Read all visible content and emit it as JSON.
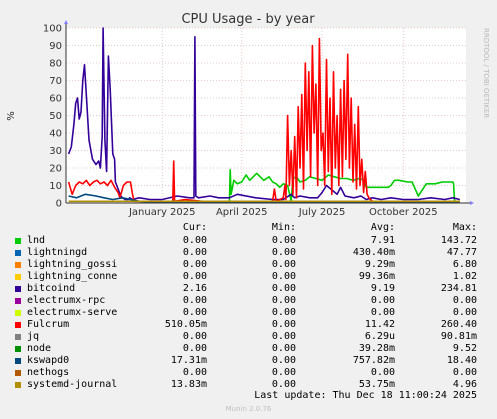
{
  "chart_data": {
    "type": "line",
    "title": "CPU Usage - by year",
    "ylabel": "%",
    "ylim": [
      0,
      100
    ],
    "yticks": [
      0,
      10,
      20,
      30,
      40,
      50,
      60,
      70,
      80,
      90,
      100
    ],
    "xlim": [
      "2024-09-28",
      "2025-12-25"
    ],
    "xticks": [
      {
        "label": "January 2025",
        "date": "2025-01-15"
      },
      {
        "label": "April 2025",
        "date": "2025-04-15"
      },
      {
        "label": "July 2025",
        "date": "2025-07-15"
      },
      {
        "label": "October 2025",
        "date": "2025-10-15"
      }
    ],
    "grid": true,
    "series": [
      {
        "name": "lnd",
        "color": "#00cc00",
        "x": [
          "2025-04-01",
          "2025-04-02",
          "2025-04-03",
          "2025-04-06",
          "2025-04-10",
          "2025-04-15",
          "2025-04-20",
          "2025-04-24",
          "2025-04-28",
          "2025-05-02",
          "2025-05-10",
          "2025-05-16",
          "2025-05-20",
          "2025-05-24",
          "2025-05-28",
          "2025-06-01",
          "2025-06-06",
          "2025-06-10",
          "2025-06-12",
          "2025-06-16",
          "2025-06-20",
          "2025-06-26",
          "2025-07-01",
          "2025-07-08",
          "2025-07-15",
          "2025-07-22",
          "2025-07-29",
          "2025-08-05",
          "2025-08-12",
          "2025-08-19",
          "2025-08-26",
          "2025-09-01",
          "2025-09-03",
          "2025-09-10",
          "2025-09-20",
          "2025-09-28",
          "2025-10-01",
          "2025-10-05",
          "2025-10-10",
          "2025-10-20",
          "2025-10-25",
          "2025-11-01",
          "2025-11-10",
          "2025-11-20",
          "2025-11-28",
          "2025-12-05",
          "2025-12-10",
          "2025-12-11",
          "2025-12-12",
          "2025-12-18"
        ],
        "y": [
          0,
          19,
          5,
          13,
          11,
          12,
          16,
          13,
          15,
          17,
          13,
          15,
          12,
          11,
          9,
          11,
          10,
          1,
          14,
          15,
          12,
          13,
          15,
          14,
          13,
          16,
          15,
          14,
          14,
          13,
          14,
          13,
          9,
          9,
          9,
          9,
          10,
          13,
          13,
          12,
          12,
          4,
          11,
          11,
          12,
          12,
          12,
          11,
          1,
          1
        ]
      },
      {
        "name": "lightningd",
        "color": "#0066b3",
        "x": [],
        "y": []
      },
      {
        "name": "lightning_gossi",
        "color": "#ff8000",
        "x": [],
        "y": []
      },
      {
        "name": "lightning_conne",
        "color": "#ffcc00",
        "x": [],
        "y": []
      },
      {
        "name": "bitcoind",
        "color": "#330099",
        "x": [
          "2024-10-01",
          "2024-10-04",
          "2024-10-07",
          "2024-10-09",
          "2024-10-11",
          "2024-10-13",
          "2024-10-15",
          "2024-10-17",
          "2024-10-19",
          "2024-10-21",
          "2024-10-24",
          "2024-10-28",
          "2024-11-01",
          "2024-11-04",
          "2024-11-06",
          "2024-11-08",
          "2024-11-09",
          "2024-11-11",
          "2024-11-13",
          "2024-11-15",
          "2024-11-17",
          "2024-11-20",
          "2024-11-22",
          "2024-11-23",
          "2024-11-26",
          "2024-11-29",
          "2024-12-01",
          "2024-12-04",
          "2024-12-06",
          "2024-12-08",
          "2024-12-09",
          "2024-12-12",
          "2024-12-20",
          "2025-01-01",
          "2025-01-15",
          "2025-02-01",
          "2025-02-15",
          "2025-02-20",
          "2025-02-21",
          "2025-02-22",
          "2025-02-25",
          "2025-03-10",
          "2025-03-20",
          "2025-04-01",
          "2025-04-10",
          "2025-05-01",
          "2025-05-20",
          "2025-06-01",
          "2025-06-10",
          "2025-06-14",
          "2025-06-20",
          "2025-07-01",
          "2025-07-10",
          "2025-07-15",
          "2025-07-20",
          "2025-08-01",
          "2025-08-05",
          "2025-08-10",
          "2025-08-20",
          "2025-08-28",
          "2025-09-03",
          "2025-09-10",
          "2025-09-20",
          "2025-10-01",
          "2025-10-15",
          "2025-11-01",
          "2025-11-15",
          "2025-12-01",
          "2025-12-10",
          "2025-12-18"
        ],
        "y": [
          28,
          32,
          45,
          57,
          60,
          48,
          52,
          70,
          79,
          62,
          36,
          25,
          22,
          24,
          20,
          38,
          100,
          36,
          18,
          84,
          65,
          28,
          25,
          12,
          8,
          4,
          3,
          2,
          2,
          2,
          3,
          2,
          3,
          2,
          2,
          4,
          3,
          3,
          95,
          4,
          3,
          4,
          3,
          3,
          5,
          3,
          2,
          2,
          5,
          3,
          4,
          3,
          3,
          6,
          10,
          5,
          9,
          4,
          3,
          4,
          2,
          3,
          2,
          3,
          2,
          2,
          3,
          2,
          3,
          2
        ]
      },
      {
        "name": "electrumx-rpc",
        "color": "#990099",
        "x": [],
        "y": []
      },
      {
        "name": "electrumx-serve",
        "color": "#ccff00",
        "x": [],
        "y": []
      },
      {
        "name": "Fulcrum",
        "color": "#ff0000",
        "x": [
          "2024-10-01",
          "2024-10-05",
          "2024-10-09",
          "2024-10-13",
          "2024-10-17",
          "2024-10-21",
          "2024-10-25",
          "2024-10-29",
          "2024-11-02",
          "2024-11-06",
          "2024-11-10",
          "2024-11-14",
          "2024-11-18",
          "2024-11-22",
          "2024-11-26",
          "2024-11-28",
          "2024-12-02",
          "2024-12-06",
          "2024-12-10",
          "2024-12-12",
          "2024-12-14",
          "2025-01-01",
          "2025-01-27",
          "2025-01-28",
          "2025-01-29",
          "2025-02-10",
          "2025-03-01",
          "2025-04-01",
          "2025-05-01",
          "2025-05-20",
          "2025-05-22",
          "2025-05-24",
          "2025-06-01",
          "2025-06-03",
          "2025-06-04",
          "2025-06-06",
          "2025-06-08",
          "2025-06-10",
          "2025-06-12",
          "2025-06-14",
          "2025-06-16",
          "2025-06-18",
          "2025-06-20",
          "2025-06-22",
          "2025-06-24",
          "2025-06-26",
          "2025-06-28",
          "2025-06-30",
          "2025-07-02",
          "2025-07-04",
          "2025-07-06",
          "2025-07-08",
          "2025-07-10",
          "2025-07-12",
          "2025-07-14",
          "2025-07-16",
          "2025-07-18",
          "2025-07-20",
          "2025-07-22",
          "2025-07-24",
          "2025-07-26",
          "2025-07-28",
          "2025-07-30",
          "2025-08-01",
          "2025-08-03",
          "2025-08-05",
          "2025-08-07",
          "2025-08-09",
          "2025-08-11",
          "2025-08-13",
          "2025-08-15",
          "2025-08-17",
          "2025-08-19",
          "2025-08-21",
          "2025-08-23",
          "2025-08-25",
          "2025-08-27",
          "2025-08-29",
          "2025-08-31",
          "2025-09-02",
          "2025-09-04",
          "2025-09-06",
          "2025-09-10",
          "2025-10-01",
          "2025-11-01",
          "2025-12-01",
          "2025-12-18"
        ],
        "y": [
          12,
          5,
          10,
          12,
          11,
          13,
          10,
          12,
          13,
          11,
          12,
          10,
          13,
          9,
          6,
          3,
          10,
          12,
          12,
          6,
          1,
          1,
          1,
          24,
          1,
          2,
          1,
          1,
          1,
          1,
          8,
          1,
          3,
          10,
          2,
          50,
          10,
          30,
          5,
          38,
          3,
          55,
          20,
          62,
          8,
          80,
          30,
          75,
          15,
          90,
          40,
          68,
          10,
          94,
          30,
          40,
          10,
          82,
          18,
          60,
          5,
          75,
          20,
          50,
          10,
          65,
          15,
          70,
          25,
          85,
          20,
          60,
          12,
          45,
          8,
          55,
          10,
          25,
          6,
          18,
          5,
          3,
          1,
          1,
          1,
          1,
          1
        ]
      },
      {
        "name": "jq",
        "color": "#808080",
        "x": [],
        "y": []
      },
      {
        "name": "node",
        "color": "#008f00",
        "x": [],
        "y": []
      },
      {
        "name": "kswapd0",
        "color": "#00487d",
        "x": [
          "2024-10-01",
          "2024-10-10",
          "2024-10-20",
          "2024-11-01",
          "2024-11-10",
          "2024-11-20",
          "2024-12-01",
          "2024-12-10",
          "2024-12-20",
          "2025-01-01",
          "2025-12-18"
        ],
        "y": [
          4,
          3,
          5,
          4,
          3,
          2,
          3,
          2,
          1,
          0.5,
          0.5
        ]
      },
      {
        "name": "nethogs",
        "color": "#b35a00",
        "x": [],
        "y": []
      },
      {
        "name": "systemd-journal",
        "color": "#b38f00",
        "x": [
          "2024-10-01",
          "2025-12-18"
        ],
        "y": [
          1,
          1
        ]
      }
    ]
  },
  "legend": {
    "headers": {
      "cur": "Cur:",
      "min": "Min:",
      "avg": "Avg:",
      "max": "Max:"
    },
    "rows": [
      {
        "name": "lnd",
        "color": "#00cc00",
        "cur": "0.00",
        "min": "0.00",
        "avg": "7.91",
        "max": "143.72"
      },
      {
        "name": "lightningd",
        "color": "#0066b3",
        "cur": "0.00",
        "min": "0.00",
        "avg": "430.40m",
        "max": "47.77"
      },
      {
        "name": "lightning_gossi",
        "color": "#ff8000",
        "cur": "0.00",
        "min": "0.00",
        "avg": "9.29m",
        "max": "6.80"
      },
      {
        "name": "lightning_conne",
        "color": "#ffcc00",
        "cur": "0.00",
        "min": "0.00",
        "avg": "99.36m",
        "max": "1.02"
      },
      {
        "name": "bitcoind",
        "color": "#330099",
        "cur": "2.16",
        "min": "0.00",
        "avg": "9.19",
        "max": "234.81"
      },
      {
        "name": "electrumx-rpc",
        "color": "#990099",
        "cur": "0.00",
        "min": "0.00",
        "avg": "0.00",
        "max": "0.00"
      },
      {
        "name": "electrumx-serve",
        "color": "#ccff00",
        "cur": "0.00",
        "min": "0.00",
        "avg": "0.00",
        "max": "0.00"
      },
      {
        "name": "Fulcrum",
        "color": "#ff0000",
        "cur": "510.05m",
        "min": "0.00",
        "avg": "11.42",
        "max": "260.40"
      },
      {
        "name": "jq",
        "color": "#808080",
        "cur": "0.00",
        "min": "0.00",
        "avg": "6.29u",
        "max": "90.81m"
      },
      {
        "name": "node",
        "color": "#008f00",
        "cur": "0.00",
        "min": "0.00",
        "avg": "39.28m",
        "max": "9.52"
      },
      {
        "name": "kswapd0",
        "color": "#00487d",
        "cur": "17.31m",
        "min": "0.00",
        "avg": "757.82m",
        "max": "18.40"
      },
      {
        "name": "nethogs",
        "color": "#b35a00",
        "cur": "0.00",
        "min": "0.00",
        "avg": "0.00",
        "max": "0.00"
      },
      {
        "name": "systemd-journal",
        "color": "#b38f00",
        "cur": "13.83m",
        "min": "0.00",
        "avg": "53.75m",
        "max": "4.96"
      }
    ]
  },
  "footer": {
    "last_update": "Last update: Thu Dec 18 11:00:24 2025",
    "version": "Munin 2.0.76"
  },
  "side_label": "RRDTOOL / TOBI OETIKER"
}
